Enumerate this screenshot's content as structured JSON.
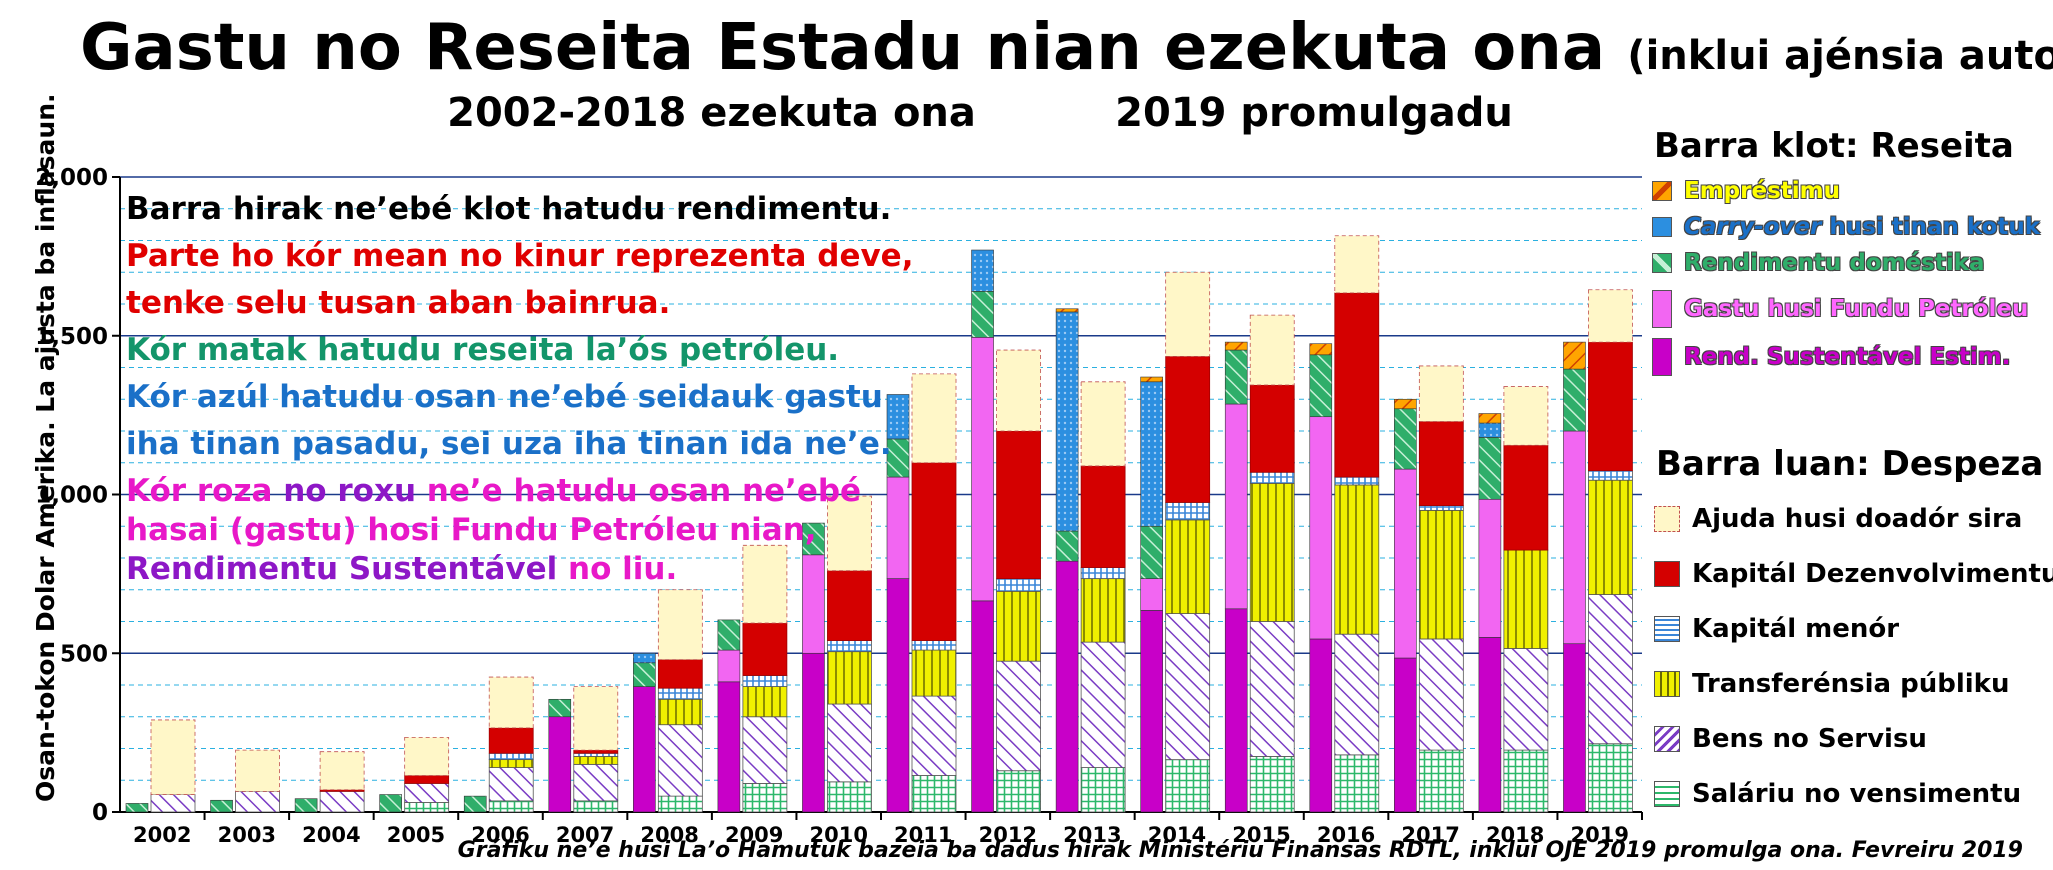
{
  "title": "Gastu no Reseita Estadu nian ezekuta ona",
  "title_note": "(inklui ajénsia auton.)",
  "subtitle_left": "2002-2018 ezekuta ona",
  "subtitle_right": "2019 promulgadu",
  "source": "Gráfiku ne’e husi La’o Hamutuk bazeia ba dadus hirak Ministériu Finansas RDTL, inklui OJE 2019 promulga ona. Fevreiru 2019",
  "notes": [
    {
      "segments": [
        {
          "text": "Barra hirak ne’ebé klot hatudu rendimentu.",
          "class": "note-black"
        }
      ]
    },
    {
      "segments": [
        {
          "text": "Parte ho kór mean no kinur reprezenta deve,",
          "class": "note-red"
        }
      ]
    },
    {
      "segments": [
        {
          "text": "tenke selu tusan aban bainrua.",
          "class": "note-red"
        }
      ]
    },
    {
      "segments": [
        {
          "text": "Kór matak hatudu reseita la’ós petróleu.",
          "class": "note-green"
        }
      ]
    },
    {
      "segments": [
        {
          "text": "Kór azúl hatudu osan ne’ebé seidauk gastu",
          "class": "note-blue"
        }
      ]
    },
    {
      "segments": [
        {
          "text": "iha tinan pasadu, sei uza iha tinan ida ne’e.",
          "class": "note-blue"
        }
      ]
    },
    {
      "segments": [
        {
          "text": "Kór roza ",
          "class": "note-pink"
        },
        {
          "text": "no roxu",
          "class": "note-purple"
        },
        {
          "text": " ne’e hatudu osan ne’ebé",
          "class": "note-pink"
        }
      ]
    },
    {
      "segments": [
        {
          "text": "hasai (gastu) hosi Fundu Petróleu nian,",
          "class": "note-pink"
        }
      ]
    },
    {
      "segments": [
        {
          "text": "Rendimentu Sustentável",
          "class": "note-purple"
        },
        {
          "text": " no liu.",
          "class": "note-pink"
        }
      ]
    }
  ],
  "legend_revenue_title": "Barra klot: Reseita",
  "legend_revenue": [
    {
      "key": "loans",
      "label": "Empréstimu"
    },
    {
      "key": "carryover",
      "label_italic": "Carry-over",
      "label": " husi tinan kotuk"
    },
    {
      "key": "domestic",
      "label": "Rendimentu doméstika"
    },
    {
      "key": "pf_excess",
      "label": "Gastu husi Fundu Petróleu"
    },
    {
      "key": "esi",
      "label": "Rend. Sustentável Estim."
    }
  ],
  "legend_expense_title": "Barra luan: Despeza",
  "legend_expense": [
    {
      "key": "donor",
      "label": "Ajuda husi doadór sira"
    },
    {
      "key": "capdev",
      "label": "Kapitál Dezenvolvimentu"
    },
    {
      "key": "minor",
      "label": "Kapitál menór"
    },
    {
      "key": "transfers",
      "label": "Transferénsia públiku"
    },
    {
      "key": "goods",
      "label": "Bens no Servisu"
    },
    {
      "key": "salaries",
      "label": "Saláriu no vensimentu"
    }
  ],
  "colors": {
    "loans": "#ffa500",
    "carryover": "#2c8fe0",
    "domestic": "#2fae6a",
    "pf_excess": "#f266f2",
    "esi": "#c800c8",
    "donor": "#fff7c8",
    "capdev": "#d40000",
    "minor": "#3a86d8",
    "transfers": "#f0f000",
    "goods": "#7a3cc4",
    "salaries": "#2cb86a"
  },
  "chart_data": {
    "type": "bar",
    "ylabel": "Osan-tokon Dolar Amerika.   La ajusta ba inflasaun.",
    "ylim": [
      0,
      2000
    ],
    "yticks": [
      0,
      500,
      1000,
      1500,
      2000
    ],
    "ytick_labels": [
      "0",
      "500",
      "1,000",
      "1,500",
      "2,000"
    ],
    "grid": true,
    "categories": [
      "2002",
      "2003",
      "2004",
      "2005",
      "2006",
      "2007",
      "2008",
      "2009",
      "2010",
      "2011",
      "2012",
      "2013",
      "2014",
      "2015",
      "2016",
      "2017",
      "2018",
      "2019"
    ],
    "revenue_series": [
      {
        "key": "esi",
        "values": [
          0,
          0,
          0,
          0,
          0,
          300,
          395,
          410,
          500,
          735,
          665,
          790,
          635,
          640,
          545,
          485,
          550,
          530
        ]
      },
      {
        "key": "pf_excess",
        "values": [
          0,
          0,
          0,
          0,
          0,
          0,
          0,
          100,
          310,
          320,
          830,
          0,
          100,
          645,
          700,
          595,
          435,
          670
        ]
      },
      {
        "key": "domestic",
        "values": [
          27,
          37,
          42,
          55,
          50,
          55,
          75,
          95,
          100,
          120,
          145,
          95,
          165,
          170,
          195,
          190,
          195,
          195
        ]
      },
      {
        "key": "carryover",
        "values": [
          0,
          0,
          0,
          0,
          0,
          0,
          30,
          0,
          0,
          140,
          130,
          690,
          455,
          0,
          0,
          0,
          45,
          0
        ]
      },
      {
        "key": "loans",
        "values": [
          0,
          0,
          0,
          0,
          0,
          0,
          0,
          0,
          0,
          0,
          0,
          10,
          15,
          25,
          35,
          30,
          30,
          85
        ]
      }
    ],
    "expense_series": [
      {
        "key": "salaries",
        "values": [
          0,
          0,
          0,
          30,
          35,
          35,
          50,
          90,
          95,
          115,
          130,
          140,
          165,
          175,
          180,
          195,
          195,
          215
        ]
      },
      {
        "key": "goods",
        "values": [
          55,
          65,
          65,
          60,
          105,
          115,
          225,
          210,
          245,
          250,
          345,
          395,
          460,
          425,
          380,
          350,
          320,
          470
        ]
      },
      {
        "key": "transfers",
        "values": [
          0,
          0,
          0,
          0,
          25,
          25,
          80,
          95,
          165,
          145,
          220,
          200,
          295,
          435,
          470,
          405,
          310,
          360
        ]
      },
      {
        "key": "minor",
        "values": [
          0,
          0,
          0,
          0,
          20,
          10,
          35,
          35,
          35,
          30,
          40,
          35,
          55,
          35,
          25,
          15,
          0,
          30
        ]
      },
      {
        "key": "capdev",
        "values": [
          0,
          0,
          5,
          25,
          80,
          10,
          90,
          165,
          220,
          560,
          465,
          320,
          460,
          275,
          580,
          265,
          330,
          405
        ]
      },
      {
        "key": "donor",
        "values": [
          235,
          130,
          120,
          120,
          160,
          200,
          220,
          245,
          235,
          280,
          255,
          265,
          265,
          220,
          180,
          175,
          185,
          165
        ]
      }
    ]
  }
}
